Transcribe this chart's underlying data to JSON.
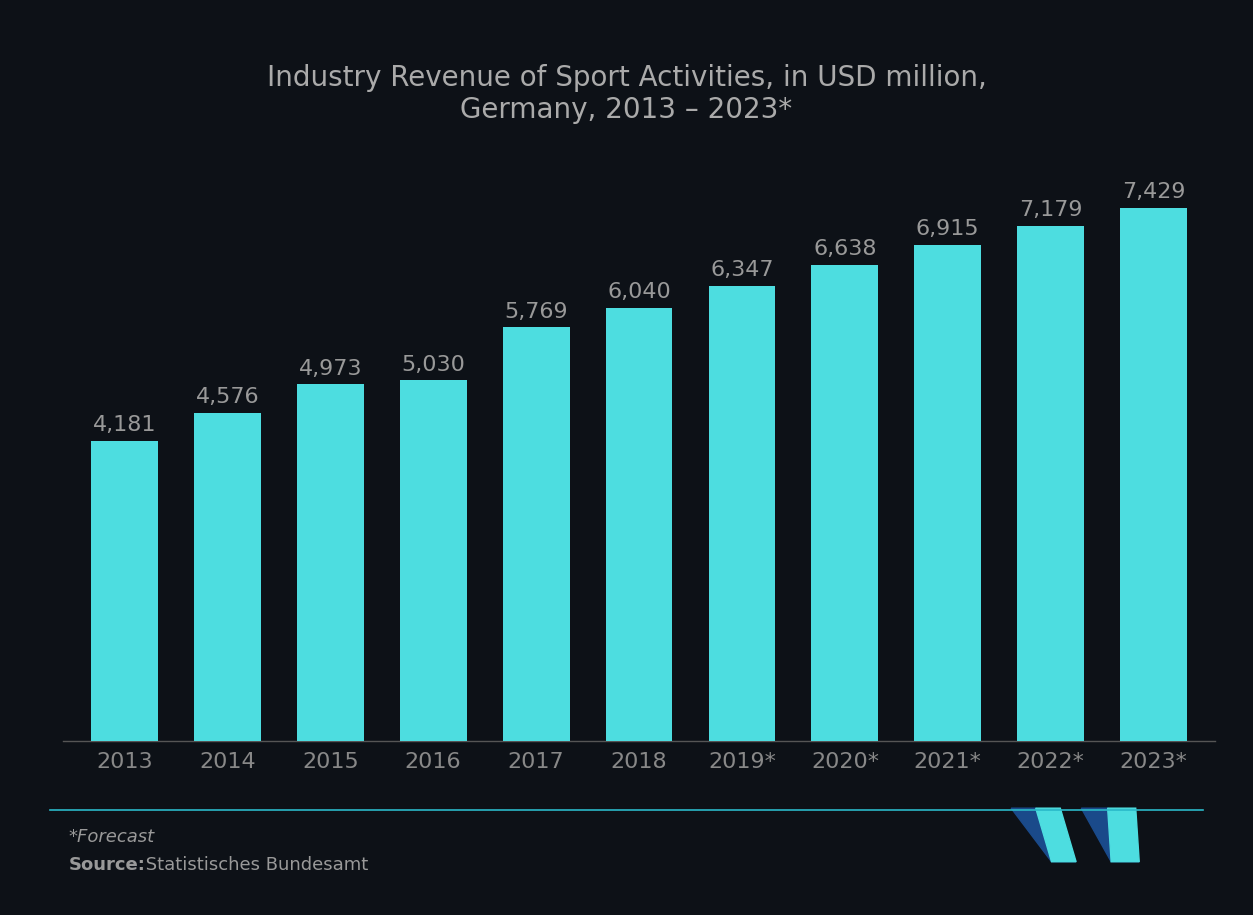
{
  "categories": [
    "2013",
    "2014",
    "2015",
    "2016",
    "2017",
    "2018",
    "2019*",
    "2020*",
    "2021*",
    "2022*",
    "2023*"
  ],
  "values": [
    4181,
    4576,
    4973,
    5030,
    5769,
    6040,
    6347,
    6638,
    6915,
    7179,
    7429
  ],
  "bar_color": "#4DDDE0",
  "background_color": "#0d1117",
  "title_line1": "Industry Revenue of Sport Activities, in USD million,",
  "title_line2": "Germany, 2013 – 2023*",
  "title_color": "#aaaaaa",
  "label_color": "#999999",
  "tick_color": "#888888",
  "footnote": "*Forecast",
  "source_bold": "Source:",
  "source_text": " Statistisches Bundesamt",
  "title_fontsize": 20,
  "label_fontsize": 16,
  "tick_fontsize": 16,
  "footnote_fontsize": 13,
  "ylim": [
    0,
    8800
  ],
  "bar_width": 0.65,
  "separator_color": "#2ab8c8",
  "logo_dark": "#1a4a8a",
  "logo_teal": "#4DDDE0"
}
